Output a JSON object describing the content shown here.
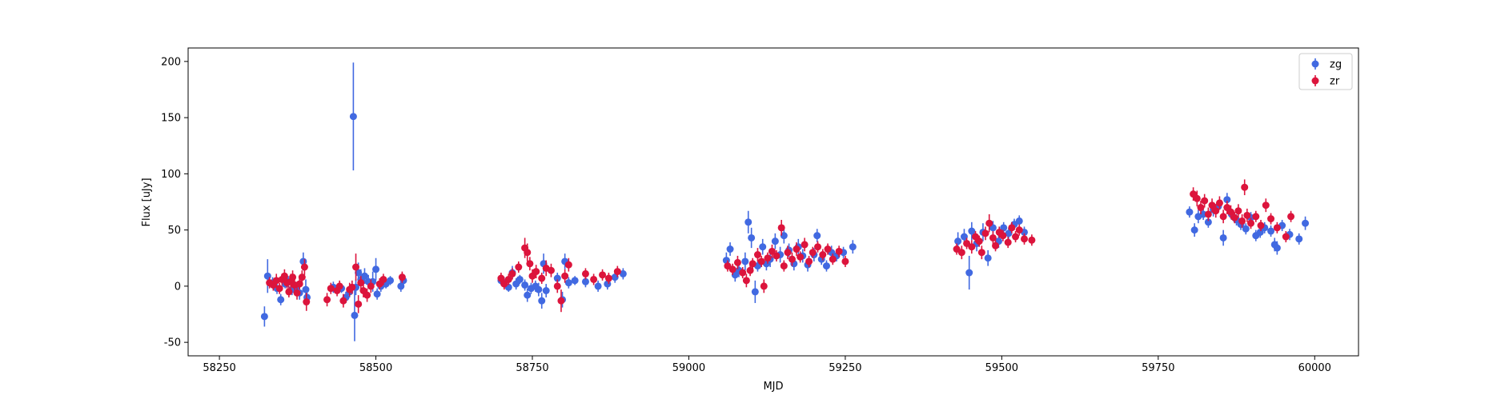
{
  "chart_data": {
    "type": "scatter",
    "title": "",
    "xlabel": "MJD",
    "ylabel": "Flux [uJy]",
    "xlim": [
      58200,
      60070
    ],
    "ylim": [
      -62,
      212
    ],
    "xticks": [
      58250,
      58500,
      58750,
      59000,
      59250,
      59500,
      59750,
      60000
    ],
    "yticks": [
      -50,
      0,
      50,
      100,
      150,
      200
    ],
    "grid": false,
    "legend_position": "top-right",
    "series": [
      {
        "name": "zg",
        "color": "#4169e1",
        "points": [
          [
            58322,
            -27,
            9
          ],
          [
            58327,
            9,
            15
          ],
          [
            58335,
            3,
            5
          ],
          [
            58342,
            -2,
            5
          ],
          [
            58348,
            -12,
            5
          ],
          [
            58355,
            2,
            4
          ],
          [
            58360,
            4,
            5
          ],
          [
            58366,
            -3,
            5
          ],
          [
            58372,
            -1,
            5
          ],
          [
            58378,
            -6,
            6
          ],
          [
            58384,
            22,
            8
          ],
          [
            58388,
            -3,
            9
          ],
          [
            58390,
            -10,
            6
          ],
          [
            58432,
            -1,
            5
          ],
          [
            58445,
            -2,
            4
          ],
          [
            58452,
            -10,
            5
          ],
          [
            58458,
            -5,
            5
          ],
          [
            58464,
            151,
            48
          ],
          [
            58466,
            -26,
            23
          ],
          [
            58468,
            -1,
            7
          ],
          [
            58472,
            12,
            9
          ],
          [
            58476,
            6,
            9
          ],
          [
            58482,
            9,
            7
          ],
          [
            58488,
            4,
            6
          ],
          [
            58495,
            4,
            9
          ],
          [
            58500,
            15,
            10
          ],
          [
            58502,
            -7,
            5
          ],
          [
            58508,
            0,
            5
          ],
          [
            58516,
            2,
            4
          ],
          [
            58523,
            5,
            4
          ],
          [
            58540,
            0,
            5
          ],
          [
            58544,
            5,
            5
          ],
          [
            58700,
            5,
            4
          ],
          [
            58705,
            3,
            5
          ],
          [
            58712,
            -1,
            4
          ],
          [
            58718,
            12,
            6
          ],
          [
            58724,
            2,
            5
          ],
          [
            58730,
            6,
            4
          ],
          [
            58738,
            1,
            5
          ],
          [
            58742,
            -8,
            6
          ],
          [
            58748,
            -2,
            5
          ],
          [
            58755,
            0,
            5
          ],
          [
            58760,
            -3,
            6
          ],
          [
            58765,
            -13,
            7
          ],
          [
            58768,
            20,
            9
          ],
          [
            58772,
            -4,
            6
          ],
          [
            58790,
            7,
            5
          ],
          [
            58798,
            -12,
            7
          ],
          [
            58802,
            22,
            7
          ],
          [
            58808,
            3,
            5
          ],
          [
            58818,
            5,
            4
          ],
          [
            58835,
            4,
            5
          ],
          [
            58855,
            0,
            5
          ],
          [
            58870,
            2,
            5
          ],
          [
            58882,
            8,
            5
          ],
          [
            58895,
            11,
            5
          ],
          [
            59060,
            23,
            7
          ],
          [
            59066,
            33,
            6
          ],
          [
            59074,
            10,
            6
          ],
          [
            59080,
            14,
            6
          ],
          [
            59090,
            22,
            8
          ],
          [
            59095,
            57,
            10
          ],
          [
            59100,
            43,
            9
          ],
          [
            59106,
            -5,
            10
          ],
          [
            59110,
            18,
            5
          ],
          [
            59118,
            35,
            7
          ],
          [
            59124,
            20,
            6
          ],
          [
            59130,
            24,
            7
          ],
          [
            59138,
            40,
            7
          ],
          [
            59146,
            28,
            7
          ],
          [
            59152,
            45,
            7
          ],
          [
            59160,
            32,
            6
          ],
          [
            59168,
            20,
            6
          ],
          [
            59175,
            35,
            7
          ],
          [
            59182,
            27,
            6
          ],
          [
            59190,
            19,
            6
          ],
          [
            59200,
            28,
            6
          ],
          [
            59205,
            45,
            6
          ],
          [
            59212,
            24,
            5
          ],
          [
            59220,
            18,
            5
          ],
          [
            59228,
            30,
            6
          ],
          [
            59236,
            27,
            5
          ],
          [
            59247,
            30,
            5
          ],
          [
            59262,
            35,
            6
          ],
          [
            59430,
            40,
            8
          ],
          [
            59440,
            44,
            7
          ],
          [
            59448,
            12,
            15
          ],
          [
            59452,
            49,
            8
          ],
          [
            59460,
            38,
            7
          ],
          [
            59470,
            48,
            8
          ],
          [
            59478,
            25,
            7
          ],
          [
            59486,
            52,
            6
          ],
          [
            59495,
            40,
            6
          ],
          [
            59503,
            52,
            5
          ],
          [
            59511,
            47,
            5
          ],
          [
            59520,
            55,
            5
          ],
          [
            59528,
            58,
            5
          ],
          [
            59536,
            48,
            5
          ],
          [
            59800,
            66,
            5
          ],
          [
            59808,
            50,
            6
          ],
          [
            59814,
            62,
            6
          ],
          [
            59822,
            64,
            5
          ],
          [
            59830,
            57,
            5
          ],
          [
            59838,
            68,
            6
          ],
          [
            59846,
            71,
            5
          ],
          [
            59854,
            43,
            7
          ],
          [
            59860,
            77,
            6
          ],
          [
            59867,
            64,
            5
          ],
          [
            59875,
            59,
            5
          ],
          [
            59882,
            55,
            5
          ],
          [
            59890,
            51,
            5
          ],
          [
            59898,
            61,
            5
          ],
          [
            59906,
            45,
            5
          ],
          [
            59913,
            48,
            5
          ],
          [
            59920,
            52,
            5
          ],
          [
            59930,
            49,
            5
          ],
          [
            59936,
            37,
            6
          ],
          [
            59940,
            34,
            6
          ],
          [
            59948,
            54,
            5
          ],
          [
            59960,
            46,
            5
          ],
          [
            59975,
            42,
            5
          ],
          [
            59985,
            56,
            6
          ]
        ]
      },
      {
        "name": "zr",
        "color": "#dc143c",
        "points": [
          [
            58330,
            3,
            5
          ],
          [
            58336,
            1,
            5
          ],
          [
            58341,
            5,
            6
          ],
          [
            58346,
            -2,
            5
          ],
          [
            58350,
            6,
            5
          ],
          [
            58354,
            9,
            6
          ],
          [
            58358,
            3,
            5
          ],
          [
            58361,
            -5,
            5
          ],
          [
            58364,
            4,
            7
          ],
          [
            58367,
            8,
            6
          ],
          [
            58370,
            1,
            5
          ],
          [
            58374,
            -6,
            6
          ],
          [
            58378,
            2,
            5
          ],
          [
            58382,
            8,
            6
          ],
          [
            58386,
            17,
            7
          ],
          [
            58389,
            -14,
            8
          ],
          [
            58422,
            -12,
            6
          ],
          [
            58428,
            -2,
            5
          ],
          [
            58438,
            -4,
            5
          ],
          [
            58442,
            0,
            5
          ],
          [
            58448,
            -13,
            6
          ],
          [
            58458,
            -3,
            6
          ],
          [
            58462,
            -1,
            6
          ],
          [
            58468,
            17,
            12
          ],
          [
            58472,
            -16,
            8
          ],
          [
            58476,
            3,
            6
          ],
          [
            58480,
            -4,
            6
          ],
          [
            58486,
            -8,
            6
          ],
          [
            58492,
            0,
            6
          ],
          [
            58506,
            2,
            5
          ],
          [
            58512,
            6,
            5
          ],
          [
            58542,
            8,
            5
          ],
          [
            58700,
            7,
            5
          ],
          [
            58705,
            2,
            5
          ],
          [
            58712,
            6,
            5
          ],
          [
            58718,
            11,
            5
          ],
          [
            58728,
            17,
            5
          ],
          [
            58738,
            34,
            9
          ],
          [
            58742,
            30,
            8
          ],
          [
            58746,
            20,
            6
          ],
          [
            58750,
            9,
            6
          ],
          [
            58756,
            13,
            6
          ],
          [
            58765,
            7,
            5
          ],
          [
            58772,
            16,
            7
          ],
          [
            58780,
            14,
            6
          ],
          [
            58790,
            0,
            6
          ],
          [
            58796,
            -13,
            10
          ],
          [
            58802,
            9,
            6
          ],
          [
            58808,
            19,
            6
          ],
          [
            58835,
            11,
            5
          ],
          [
            58848,
            6,
            5
          ],
          [
            58862,
            10,
            5
          ],
          [
            58872,
            7,
            5
          ],
          [
            58886,
            13,
            5
          ],
          [
            59062,
            18,
            5
          ],
          [
            59070,
            15,
            5
          ],
          [
            59078,
            21,
            6
          ],
          [
            59086,
            12,
            5
          ],
          [
            59092,
            5,
            6
          ],
          [
            59098,
            14,
            5
          ],
          [
            59102,
            20,
            5
          ],
          [
            59110,
            28,
            6
          ],
          [
            59116,
            22,
            5
          ],
          [
            59120,
            0,
            6
          ],
          [
            59126,
            25,
            5
          ],
          [
            59133,
            31,
            6
          ],
          [
            59140,
            27,
            5
          ],
          [
            59148,
            52,
            7
          ],
          [
            59152,
            18,
            5
          ],
          [
            59158,
            30,
            6
          ],
          [
            59165,
            24,
            6
          ],
          [
            59172,
            33,
            6
          ],
          [
            59178,
            26,
            5
          ],
          [
            59185,
            37,
            6
          ],
          [
            59192,
            22,
            5
          ],
          [
            59198,
            30,
            5
          ],
          [
            59206,
            35,
            5
          ],
          [
            59214,
            28,
            5
          ],
          [
            59222,
            33,
            5
          ],
          [
            59230,
            24,
            5
          ],
          [
            59240,
            31,
            5
          ],
          [
            59250,
            22,
            5
          ],
          [
            59428,
            33,
            5
          ],
          [
            59436,
            30,
            6
          ],
          [
            59444,
            38,
            5
          ],
          [
            59452,
            35,
            6
          ],
          [
            59458,
            44,
            5
          ],
          [
            59464,
            40,
            5
          ],
          [
            59468,
            30,
            6
          ],
          [
            59474,
            47,
            6
          ],
          [
            59480,
            56,
            8
          ],
          [
            59486,
            43,
            6
          ],
          [
            59490,
            36,
            5
          ],
          [
            59496,
            48,
            5
          ],
          [
            59502,
            45,
            5
          ],
          [
            59510,
            39,
            5
          ],
          [
            59516,
            52,
            5
          ],
          [
            59522,
            44,
            5
          ],
          [
            59528,
            50,
            5
          ],
          [
            59536,
            42,
            5
          ],
          [
            59548,
            41,
            5
          ],
          [
            59806,
            82,
            6
          ],
          [
            59812,
            78,
            7
          ],
          [
            59818,
            70,
            6
          ],
          [
            59824,
            76,
            6
          ],
          [
            59830,
            64,
            6
          ],
          [
            59836,
            72,
            6
          ],
          [
            59842,
            67,
            6
          ],
          [
            59848,
            74,
            6
          ],
          [
            59854,
            62,
            6
          ],
          [
            59860,
            70,
            6
          ],
          [
            59866,
            66,
            6
          ],
          [
            59872,
            61,
            5
          ],
          [
            59878,
            67,
            6
          ],
          [
            59884,
            58,
            6
          ],
          [
            59888,
            88,
            7
          ],
          [
            59892,
            63,
            6
          ],
          [
            59898,
            56,
            5
          ],
          [
            59906,
            62,
            5
          ],
          [
            59914,
            54,
            5
          ],
          [
            59922,
            72,
            6
          ],
          [
            59930,
            60,
            5
          ],
          [
            59940,
            52,
            5
          ],
          [
            59954,
            44,
            5
          ],
          [
            59962,
            62,
            5
          ]
        ]
      }
    ]
  }
}
